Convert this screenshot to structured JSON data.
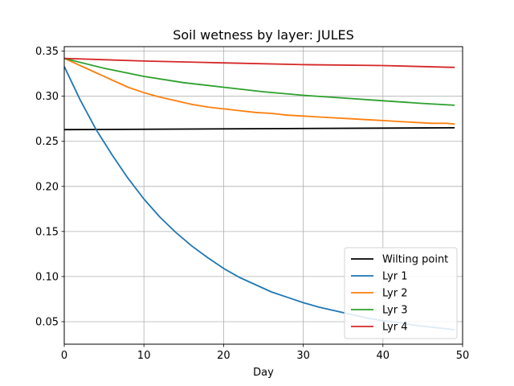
{
  "chart_data": {
    "type": "line",
    "title": "Soil wetness by layer: JULES",
    "xlabel": "Day",
    "ylabel": "",
    "xlim": [
      0,
      50
    ],
    "ylim": [
      0.025,
      0.355
    ],
    "xticks": [
      0,
      10,
      20,
      30,
      40,
      50
    ],
    "yticks": [
      0.05,
      0.1,
      0.15,
      0.2,
      0.25,
      0.3,
      0.35
    ],
    "grid": true,
    "legend_position": "bottom-right",
    "series": [
      {
        "name": "Wilting point",
        "color": "#000000",
        "x": [
          0,
          49
        ],
        "y": [
          0.263,
          0.265
        ]
      },
      {
        "name": "Lyr 1",
        "color": "#1f77b4",
        "x": [
          0,
          2,
          4,
          6,
          8,
          10,
          12,
          14,
          16,
          18,
          20,
          22,
          24,
          26,
          28,
          30,
          32,
          34,
          36,
          38,
          40,
          42,
          44,
          46,
          48,
          49
        ],
        "y": [
          0.333,
          0.296,
          0.263,
          0.235,
          0.209,
          0.186,
          0.166,
          0.149,
          0.134,
          0.121,
          0.109,
          0.099,
          0.091,
          0.083,
          0.077,
          0.071,
          0.066,
          0.062,
          0.058,
          0.054,
          0.051,
          0.049,
          0.046,
          0.044,
          0.042,
          0.041
        ]
      },
      {
        "name": "Lyr 2",
        "color": "#ff7f0e",
        "x": [
          0,
          2,
          4,
          6,
          8,
          10,
          12,
          14,
          16,
          18,
          20,
          22,
          24,
          26,
          28,
          30,
          32,
          34,
          36,
          38,
          40,
          42,
          44,
          46,
          48,
          49
        ],
        "y": [
          0.342,
          0.334,
          0.326,
          0.318,
          0.31,
          0.304,
          0.299,
          0.295,
          0.291,
          0.288,
          0.286,
          0.284,
          0.282,
          0.281,
          0.279,
          0.278,
          0.277,
          0.276,
          0.275,
          0.274,
          0.273,
          0.272,
          0.271,
          0.27,
          0.27,
          0.269
        ]
      },
      {
        "name": "Lyr 3",
        "color": "#2ca02c",
        "x": [
          0,
          5,
          10,
          15,
          20,
          25,
          30,
          35,
          40,
          45,
          49
        ],
        "y": [
          0.342,
          0.331,
          0.322,
          0.315,
          0.31,
          0.305,
          0.301,
          0.298,
          0.295,
          0.292,
          0.29
        ]
      },
      {
        "name": "Lyr 4",
        "color": "#d62728",
        "x": [
          0,
          10,
          20,
          30,
          40,
          49
        ],
        "y": [
          0.342,
          0.339,
          0.337,
          0.335,
          0.334,
          0.332
        ]
      }
    ]
  }
}
